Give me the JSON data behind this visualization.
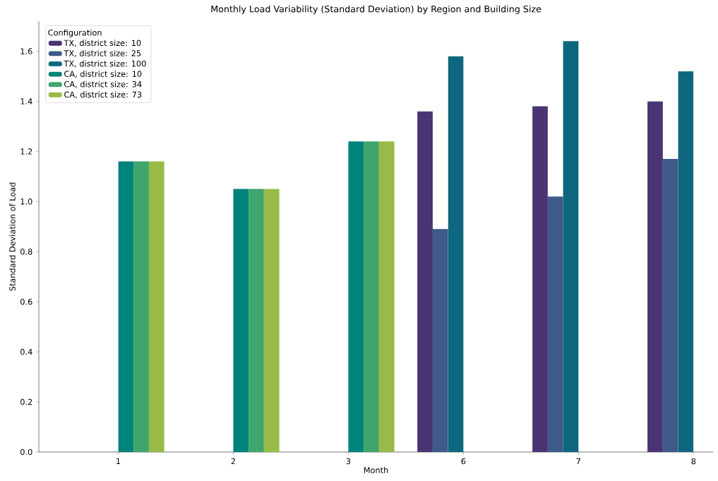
{
  "chart_data": {
    "type": "bar",
    "title": "Monthly Load Variability (Standard Deviation) by Region and Building Size",
    "xlabel": "Month",
    "ylabel": "Standard Deviation of Load",
    "legend_title": "Configuration",
    "legend": "top left",
    "categories": [
      "1",
      "2",
      "3",
      "6",
      "7",
      "8"
    ],
    "series": [
      {
        "name": "TX, district size: 10",
        "color": "#4b3474",
        "values": [
          null,
          null,
          null,
          1.36,
          1.38,
          1.4
        ]
      },
      {
        "name": "TX, district size: 25",
        "color": "#3e5a88",
        "values": [
          null,
          null,
          null,
          0.89,
          1.02,
          1.17
        ]
      },
      {
        "name": "TX, district size: 100",
        "color": "#0e677e",
        "values": [
          null,
          null,
          null,
          1.58,
          1.64,
          1.52
        ]
      },
      {
        "name": "CA, district size: 10",
        "color": "#00837a",
        "values": [
          1.16,
          1.05,
          1.24,
          null,
          null,
          null
        ]
      },
      {
        "name": "CA, district size: 34",
        "color": "#3fa56d",
        "values": [
          1.16,
          1.05,
          1.24,
          null,
          null,
          null
        ]
      },
      {
        "name": "CA, district size: 73",
        "color": "#97bb46",
        "values": [
          1.16,
          1.05,
          1.24,
          null,
          null,
          null
        ]
      }
    ],
    "ylim": [
      0,
      1.72
    ],
    "yticks": [
      {
        "value": 0,
        "label": "0.0"
      },
      {
        "value": 0.2,
        "label": "0.2"
      },
      {
        "value": 0.4,
        "label": "0.4"
      },
      {
        "value": 0.6,
        "label": "0.6"
      },
      {
        "value": 0.8,
        "label": "0.8"
      },
      {
        "value": 1.0,
        "label": "1.0"
      },
      {
        "value": 1.2,
        "label": "1.2"
      },
      {
        "value": 1.4,
        "label": "1.4"
      },
      {
        "value": 1.6,
        "label": "1.6"
      }
    ]
  }
}
